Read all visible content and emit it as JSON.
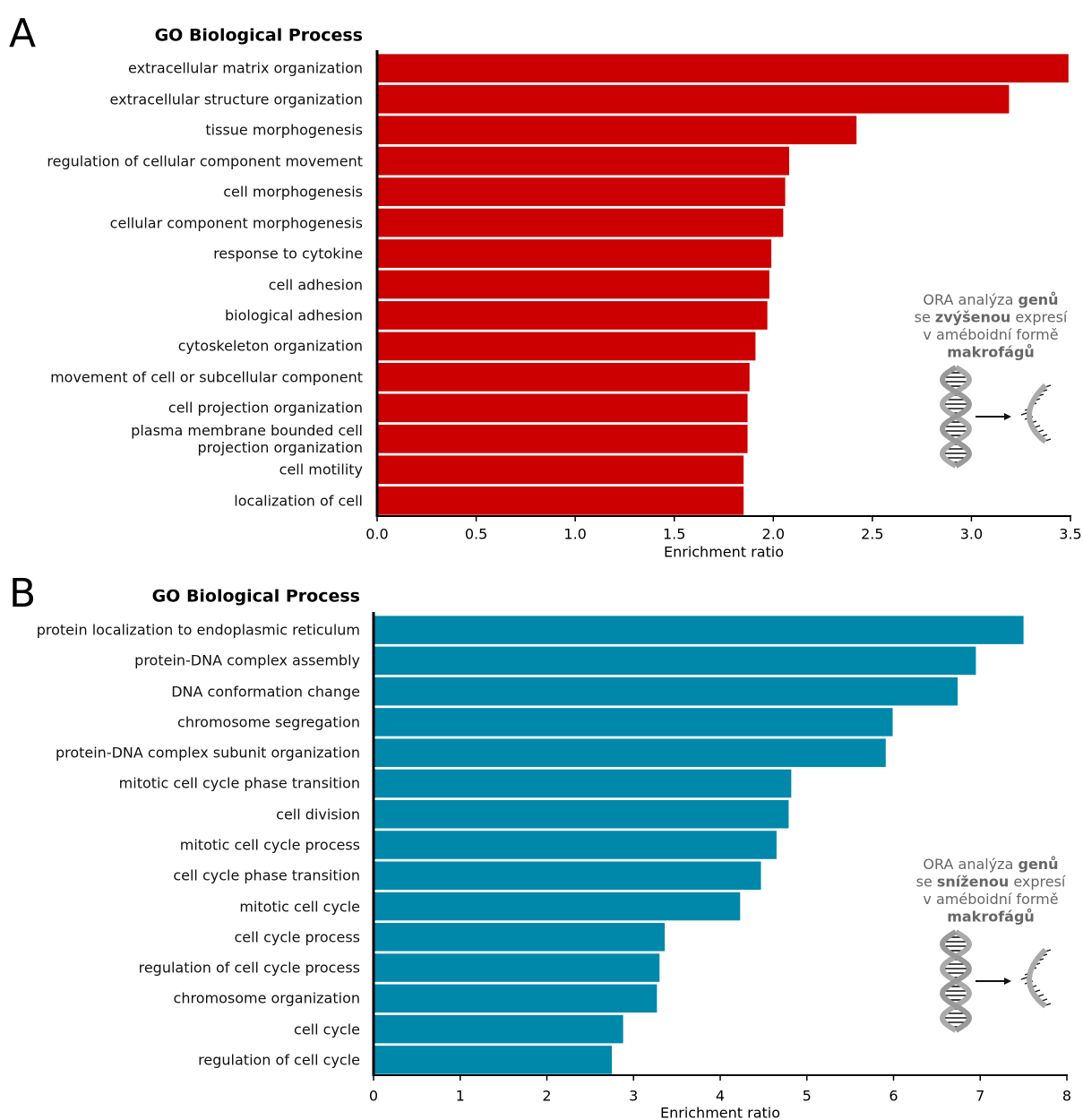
{
  "chart_data": [
    {
      "type": "bar",
      "orientation": "horizontal",
      "panel_label": "A",
      "title": "GO Biological Process",
      "categories": [
        "extracellular matrix organization",
        "extracellular structure organization",
        "tissue morphogenesis",
        "regulation of cellular component movement",
        "cell morphogenesis",
        "cellular component morphogenesis",
        "response to cytokine",
        "cell adhesion",
        "biological adhesion",
        "cytoskeleton organization",
        "movement of cell or subcellular component",
        "cell projection organization",
        "plasma membrane bounded cell\nprojection organization",
        "cell motility",
        "localization of cell"
      ],
      "values": [
        3.49,
        3.19,
        2.42,
        2.08,
        2.06,
        2.05,
        1.99,
        1.98,
        1.97,
        1.91,
        1.88,
        1.87,
        1.87,
        1.85,
        1.85
      ],
      "color": "#cc0000",
      "xlabel": "Enrichment ratio",
      "xlim": [
        0,
        3.5
      ],
      "xticks": [
        {
          "value": 0,
          "label": "0.0"
        },
        0.5,
        {
          "value": 1,
          "label": "1.0"
        },
        1.5,
        {
          "value": 2,
          "label": "2.0"
        },
        2.5,
        {
          "value": 3,
          "label": "3.0"
        },
        3.5
      ],
      "annotation": [
        [
          {
            "text": "ORA analýza"
          },
          {
            "text": "genů",
            "bold": true
          }
        ],
        [
          {
            "text": "se"
          },
          {
            "text": "zvýšenou",
            "bold": true
          },
          {
            "text": "expresí"
          }
        ],
        [
          {
            "text": "v améboidní formě"
          }
        ],
        [
          {
            "text": "makrofágů",
            "bold": true
          }
        ]
      ]
    },
    {
      "type": "bar",
      "orientation": "horizontal",
      "panel_label": "B",
      "title": "GO Biological Process",
      "categories": [
        "protein localization to endoplasmic reticulum",
        "protein-DNA complex assembly",
        "DNA conformation change",
        "chromosome segregation",
        "protein-DNA complex subunit organization",
        "mitotic cell cycle phase transition",
        "cell division",
        "mitotic cell cycle process",
        "cell cycle phase transition",
        "mitotic cell cycle",
        "cell cycle process",
        "regulation of cell cycle process",
        "chromosome organization",
        "cell cycle",
        "regulation of cell cycle"
      ],
      "values": [
        7.5,
        6.95,
        6.74,
        5.99,
        5.91,
        4.82,
        4.79,
        4.65,
        4.47,
        4.23,
        3.36,
        3.3,
        3.27,
        2.88,
        2.75
      ],
      "color": "#0088aa",
      "xlabel": "Enrichment ratio",
      "xlim": [
        0,
        8
      ],
      "xticks": [
        0,
        1,
        2,
        3,
        4,
        5,
        6,
        7,
        8
      ],
      "annotation": [
        [
          {
            "text": "ORA analýza"
          },
          {
            "text": "genů",
            "bold": true
          }
        ],
        [
          {
            "text": "se"
          },
          {
            "text": "sníženou",
            "bold": true
          },
          {
            "text": "expresí"
          }
        ],
        [
          {
            "text": "v améboidní formě"
          }
        ],
        [
          {
            "text": "makrofágů",
            "bold": true
          }
        ]
      ]
    }
  ]
}
